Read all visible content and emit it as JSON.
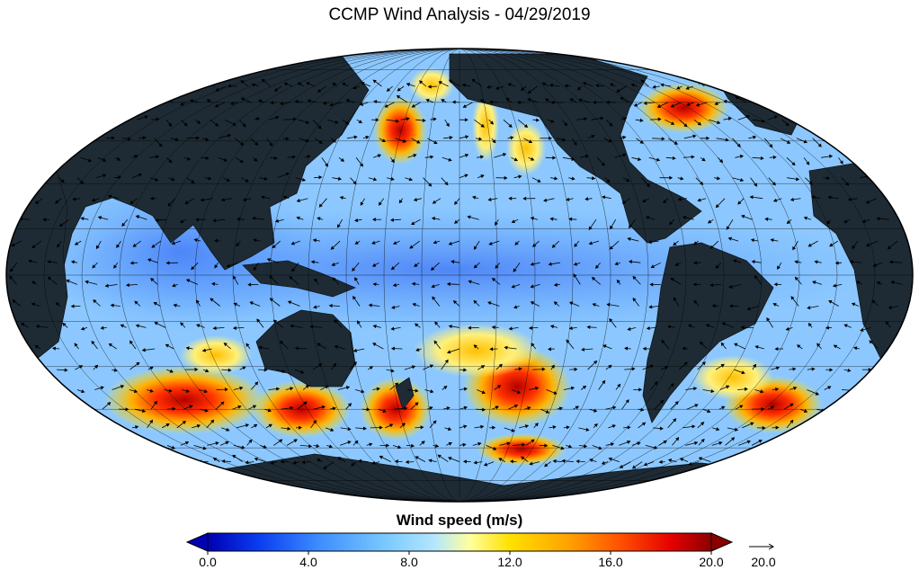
{
  "title": "CCMP Wind Analysis - 04/29/2019",
  "colorbar": {
    "label": "Wind speed (m/s)",
    "ticks": [
      "0.0",
      "4.0",
      "8.0",
      "12.0",
      "16.0",
      "20.0"
    ],
    "min": 0,
    "max": 20,
    "extend": "both",
    "colors": [
      "#0000b4",
      "#0a3cf0",
      "#3c8cff",
      "#78c8ff",
      "#b4e6ff",
      "#ffffa0",
      "#ffe100",
      "#ffa000",
      "#ff5000",
      "#e60000",
      "#8c0000"
    ]
  },
  "reference_vector": {
    "label": "20.0",
    "value": 20
  },
  "map": {
    "projection": "Mollweide",
    "central_longitude": 180,
    "land_color": "#1e2b35",
    "ocean_base_color": "#8cc8ff"
  }
}
